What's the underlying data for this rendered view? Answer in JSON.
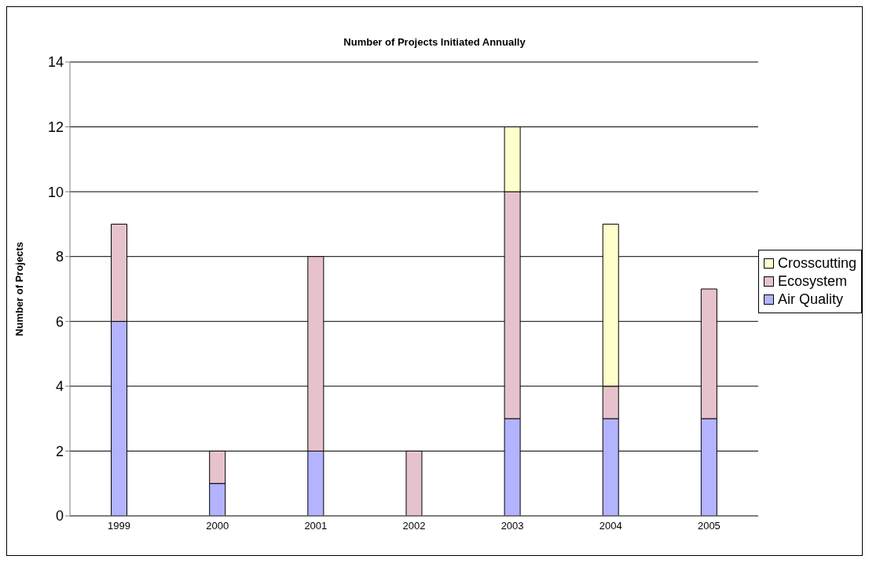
{
  "chart_data": {
    "type": "bar",
    "title": "Number of Projects Initiated Annually",
    "ylabel": "Number of Projects",
    "categories": [
      "1999",
      "2000",
      "2001",
      "2002",
      "2003",
      "2004",
      "2005"
    ],
    "stacked": true,
    "series": [
      {
        "name": "Air Quality",
        "color": "#b3b3ff",
        "values": [
          6,
          1,
          2,
          0,
          3,
          3,
          3
        ]
      },
      {
        "name": "Ecosystem",
        "color": "#e6c3cc",
        "values": [
          3,
          1,
          6,
          2,
          7,
          1,
          4
        ]
      },
      {
        "name": "Crosscutting",
        "color": "#ffffcc",
        "values": [
          0,
          0,
          0,
          0,
          2,
          5,
          0
        ]
      }
    ],
    "ylim": [
      0,
      14
    ],
    "yticks": [
      0,
      2,
      4,
      6,
      8,
      10,
      12,
      14
    ],
    "grid": "y",
    "legend": "right"
  }
}
